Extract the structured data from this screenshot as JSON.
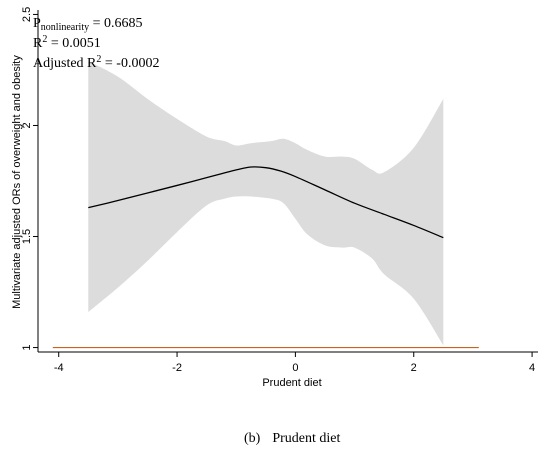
{
  "chart_data": {
    "type": "line",
    "title": "",
    "xlabel": "Prudent diet",
    "ylabel": "Multivariate adjusted ORs of overweight and obesity",
    "xlim": [
      -4.35,
      4.1
    ],
    "ylim": [
      0.98,
      2.52
    ],
    "x_ticks": [
      "-4",
      "-2",
      "0",
      "2",
      "4"
    ],
    "x_tick_values": [
      -4,
      -2,
      0,
      2,
      4
    ],
    "y_ticks": [
      "1",
      "1.5",
      "2",
      "2.5"
    ],
    "y_tick_values": [
      1,
      1.5,
      2,
      2.5
    ],
    "grid": false,
    "legend": "none",
    "series": [
      {
        "kind": "line",
        "color": "#000000",
        "x": [
          -3.5,
          -3.0,
          -2.5,
          -2.0,
          -1.5,
          -1.0,
          -0.75,
          -0.5,
          -0.25,
          0.0,
          0.5,
          1.0,
          1.5,
          2.0,
          2.5
        ],
        "y": [
          1.63,
          1.662,
          1.696,
          1.73,
          1.765,
          1.8,
          1.813,
          1.81,
          1.795,
          1.77,
          1.71,
          1.65,
          1.6,
          1.55,
          1.495
        ]
      },
      {
        "kind": "band",
        "color": "#dcdcdc",
        "x": [
          -3.5,
          -3.0,
          -2.5,
          -2.0,
          -1.5,
          -1.2,
          -1.0,
          -0.75,
          -0.4,
          -0.2,
          0.0,
          0.2,
          0.5,
          0.8,
          1.0,
          1.3,
          1.5,
          2.0,
          2.5
        ],
        "lower": [
          1.16,
          1.27,
          1.39,
          1.52,
          1.64,
          1.67,
          1.68,
          1.68,
          1.67,
          1.65,
          1.58,
          1.51,
          1.46,
          1.45,
          1.45,
          1.4,
          1.33,
          1.22,
          1.01
        ],
        "upper": [
          2.29,
          2.22,
          2.12,
          2.03,
          1.95,
          1.93,
          1.91,
          1.92,
          1.93,
          1.94,
          1.92,
          1.89,
          1.86,
          1.86,
          1.85,
          1.8,
          1.79,
          1.9,
          2.12
        ]
      },
      {
        "kind": "line",
        "color": "#c8641e",
        "x": [
          -4.1,
          3.1
        ],
        "y": [
          1.0,
          1.0
        ]
      }
    ],
    "annotations": {
      "p_main": "P",
      "p_sub": "nonlinearity",
      "p_value": " = 0.6685",
      "r2_main": "R",
      "r2_sup": "2",
      "r2_value": " = 0.0051",
      "adj_main": "Adjusted R",
      "adj_sup": "2",
      "adj_value": " = -0.0002"
    }
  },
  "caption": {
    "label": "(b)",
    "text": "Prudent diet"
  }
}
